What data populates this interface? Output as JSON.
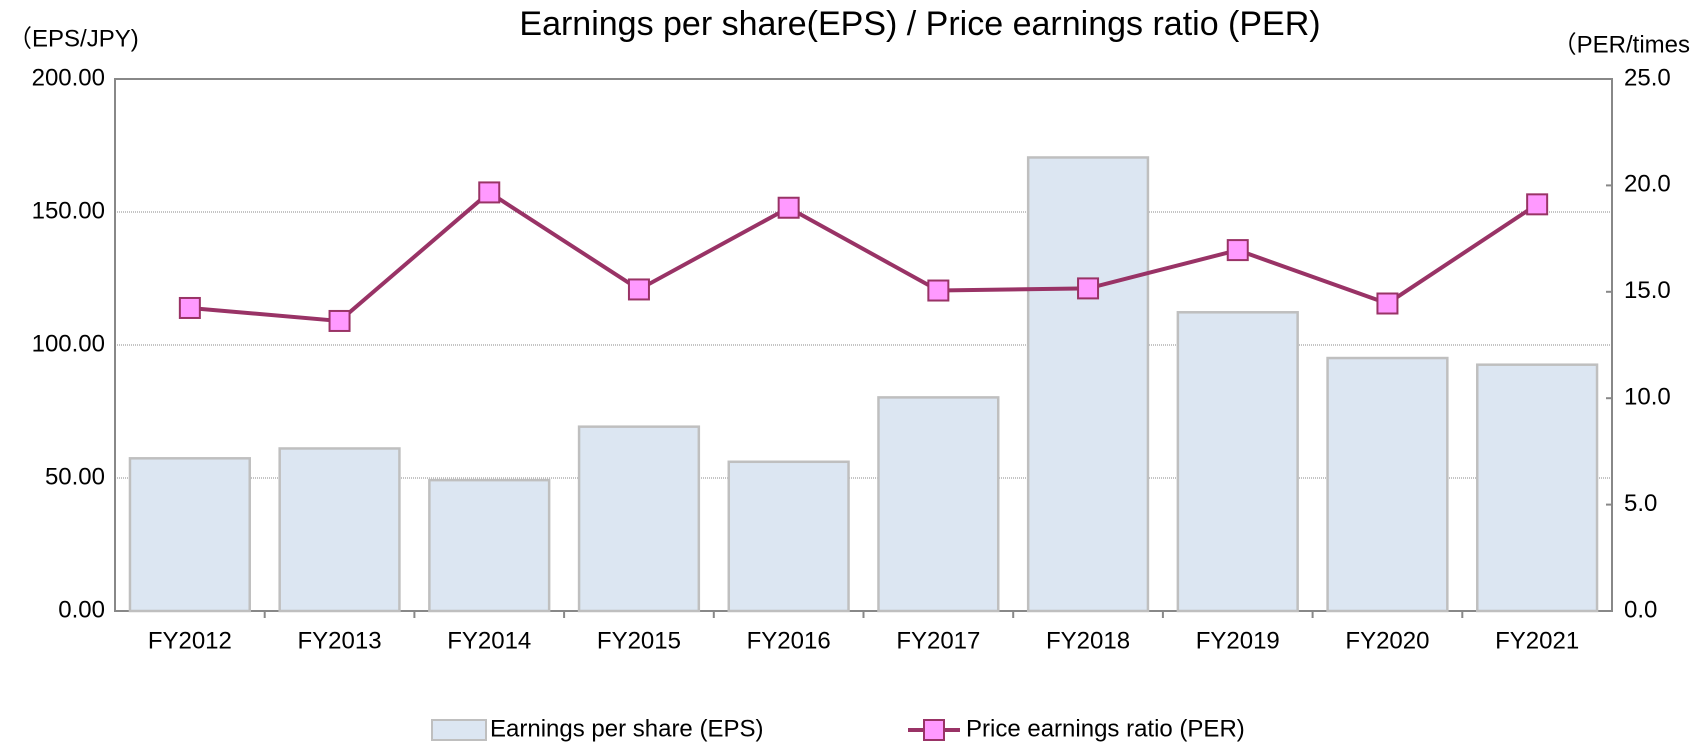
{
  "chart_data": {
    "type": "bar_line",
    "title": "Earnings per share(EPS) / Price earnings ratio (PER)",
    "y_label": "（EPS/JPY)",
    "y2_label": "（PER/times",
    "categories": [
      "FY2012",
      "FY2013",
      "FY2014",
      "FY2015",
      "FY2016",
      "FY2017",
      "FY2018",
      "FY2019",
      "FY2020",
      "FY2021"
    ],
    "series": [
      {
        "name": "Earnings per share (EPS)",
        "type": "bar",
        "color": "#dce6f2",
        "edge_color": "#bfbfbf",
        "values": [
          57.4,
          61.1,
          49.2,
          69.3,
          56.1,
          80.3,
          170.5,
          112.3,
          95.1,
          92.6
        ]
      },
      {
        "name": "Price earnings ratio (PER)",
        "type": "line",
        "axis": "y2",
        "color": "#993366",
        "marker_color": "#ff99ff",
        "values": [
          14.24,
          13.63,
          19.67,
          15.11,
          18.95,
          15.06,
          15.16,
          16.96,
          14.45,
          19.11
        ]
      }
    ],
    "ylim": [
      0,
      200
    ],
    "yticks": [
      {
        "value": 0,
        "label": "0.00"
      },
      {
        "value": 50,
        "label": "50.00"
      },
      {
        "value": 100,
        "label": "100.00"
      },
      {
        "value": 150,
        "label": "150.00"
      },
      {
        "value": 200,
        "label": "200.00"
      }
    ],
    "y2lim": [
      0,
      25
    ],
    "y2ticks": [
      {
        "value": 0,
        "label": "0.0"
      },
      {
        "value": 5,
        "label": "5.0"
      },
      {
        "value": 10,
        "label": "10.0"
      },
      {
        "value": 15,
        "label": "15.0"
      },
      {
        "value": 20,
        "label": "20.0"
      },
      {
        "value": 25,
        "label": "25.0"
      }
    ],
    "grid": true,
    "legend": "bottom"
  }
}
